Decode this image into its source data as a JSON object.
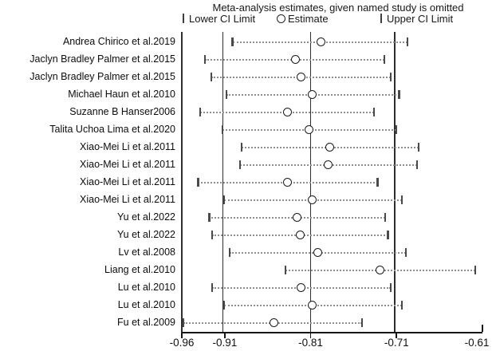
{
  "title": "Meta-analysis estimates, given named study is omitted",
  "legend": {
    "items": [
      {
        "label": "Lower CI Limit",
        "marker": "vertical-tick"
      },
      {
        "label": "Estimate",
        "marker": "circle"
      },
      {
        "label": "Upper CI Limit",
        "marker": "vertical-tick"
      }
    ]
  },
  "chart_data": {
    "type": "scatter",
    "subtype": "forest-leave-one-out",
    "title": "Meta-analysis estimates, given named study is omitted",
    "xlabel": "",
    "ylabel": "",
    "x_axis": {
      "range": [
        -0.96,
        -0.61
      ],
      "tick_values": [
        -0.96,
        -0.91,
        -0.81,
        -0.71,
        -0.61
      ],
      "tick_labels": [
        "-0.96",
        "-0.91",
        "-0.81",
        "-0.71",
        "-0.61"
      ]
    },
    "overall": {
      "lower_ci": -0.912,
      "estimate": -0.81,
      "upper_ci": -0.712
    },
    "studies": [
      {
        "label": "Andrea Chirico et al.2019",
        "lower_ci": -0.901,
        "estimate": -0.798,
        "upper_ci": -0.697
      },
      {
        "label": "Jaclyn Bradley Palmer et al.2015",
        "lower_ci": -0.933,
        "estimate": -0.828,
        "upper_ci": -0.724
      },
      {
        "label": "Jaclyn Bradley Palmer et al.2015",
        "lower_ci": -0.926,
        "estimate": -0.821,
        "upper_ci": -0.717
      },
      {
        "label": "Michael Haun et al.2010",
        "lower_ci": -0.908,
        "estimate": -0.808,
        "upper_ci": -0.707
      },
      {
        "label": "Suzanne B Hanser2006",
        "lower_ci": -0.939,
        "estimate": -0.837,
        "upper_ci": -0.736
      },
      {
        "label": "Talita Uchoa Lima et al.2020",
        "lower_ci": -0.913,
        "estimate": -0.812,
        "upper_ci": -0.71
      },
      {
        "label": "Xiao-Mei Li et al.2011",
        "lower_ci": -0.89,
        "estimate": -0.788,
        "upper_ci": -0.684
      },
      {
        "label": "Xiao-Mei Li et al.2011",
        "lower_ci": -0.892,
        "estimate": -0.79,
        "upper_ci": -0.686
      },
      {
        "label": "Xiao-Mei Li et al.2011",
        "lower_ci": -0.941,
        "estimate": -0.837,
        "upper_ci": -0.732
      },
      {
        "label": "Xiao-Mei Li et al.2011",
        "lower_ci": -0.911,
        "estimate": -0.808,
        "upper_ci": -0.704
      },
      {
        "label": "Yu et al.2022",
        "lower_ci": -0.928,
        "estimate": -0.826,
        "upper_ci": -0.723
      },
      {
        "label": "Yu et al.2022",
        "lower_ci": -0.925,
        "estimate": -0.822,
        "upper_ci": -0.72
      },
      {
        "label": "Lv et al.2008",
        "lower_ci": -0.904,
        "estimate": -0.802,
        "upper_ci": -0.699
      },
      {
        "label": "Liang et al.2010",
        "lower_ci": -0.839,
        "estimate": -0.729,
        "upper_ci": -0.618
      },
      {
        "label": "Lu et al.2010",
        "lower_ci": -0.925,
        "estimate": -0.821,
        "upper_ci": -0.717
      },
      {
        "label": "Lu et al.2010",
        "lower_ci": -0.911,
        "estimate": -0.808,
        "upper_ci": -0.704
      },
      {
        "label": "Fu et al.2009",
        "lower_ci": -0.958,
        "estimate": -0.853,
        "upper_ci": -0.75
      }
    ],
    "layout_hints": {
      "grid": false,
      "legend_position": "top",
      "reference_lines": "solid vertical lines at overall lower CI, estimate, upper CI"
    }
  }
}
